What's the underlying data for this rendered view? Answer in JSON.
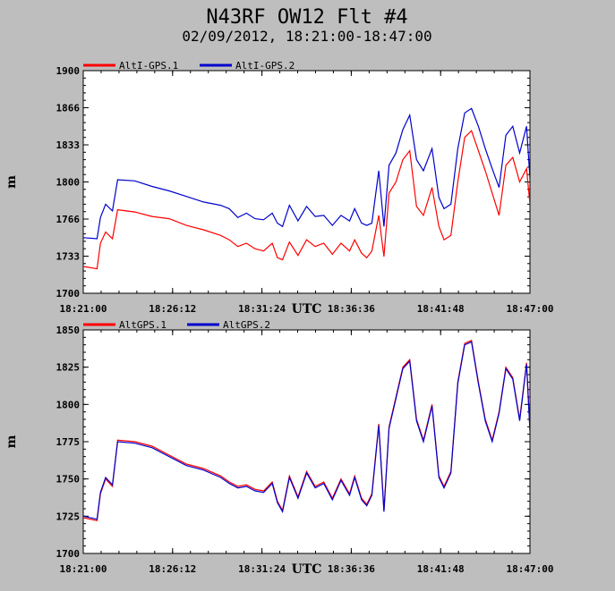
{
  "title": "N43RF OW12 Flt #4",
  "subtitle": "02/09/2012, 18:21:00-18:47:00",
  "colors": {
    "background": "#bebebe",
    "plot_bg": "#ffffff",
    "series1": "#ff0000",
    "series2": "#0000cc"
  },
  "chart_data": [
    {
      "type": "line",
      "xlabel": "UTC",
      "ylabel": "m",
      "x_ticks": [
        "18:21:00",
        "18:26:12",
        "18:31:24",
        "18:36:36",
        "18:41:48",
        "18:47:00"
      ],
      "y_ticks": [
        "1700",
        "1733",
        "1766",
        "1800",
        "1833",
        "1866",
        "1900"
      ],
      "ylim": [
        1700,
        1900
      ],
      "xlim_minutes": [
        0,
        26
      ],
      "legend": "top-left",
      "grid": false,
      "series": [
        {
          "name": "AltI-GPS.1",
          "color": "#ff0000",
          "x": [
            0,
            0.8,
            1.0,
            1.3,
            1.7,
            2.0,
            3.0,
            4.0,
            5.0,
            6.0,
            7.0,
            8.0,
            8.5,
            9.0,
            9.5,
            10.0,
            10.5,
            11.0,
            11.3,
            11.6,
            12.0,
            12.5,
            13.0,
            13.5,
            14.0,
            14.5,
            15.0,
            15.5,
            15.8,
            16.2,
            16.5,
            16.8,
            17.2,
            17.5,
            17.8,
            18.2,
            18.6,
            19.0,
            19.4,
            19.8,
            20.3,
            20.7,
            21.0,
            21.4,
            21.8,
            22.2,
            22.6,
            23.0,
            23.4,
            23.8,
            24.2,
            24.6,
            25.0,
            25.4,
            25.8,
            26.0
          ],
          "y": [
            1724,
            1722,
            1745,
            1755,
            1749,
            1775,
            1773,
            1769,
            1767,
            1761,
            1757,
            1752,
            1748,
            1742,
            1745,
            1740,
            1738,
            1745,
            1732,
            1730,
            1746,
            1734,
            1748,
            1742,
            1745,
            1735,
            1745,
            1738,
            1748,
            1736,
            1732,
            1738,
            1770,
            1733,
            1790,
            1800,
            1820,
            1828,
            1778,
            1770,
            1795,
            1760,
            1748,
            1752,
            1800,
            1840,
            1846,
            1828,
            1810,
            1790,
            1770,
            1815,
            1822,
            1800,
            1812,
            1780
          ]
        },
        {
          "name": "AltI-GPS.2",
          "color": "#0000cc",
          "x": [
            0,
            0.8,
            1.0,
            1.3,
            1.7,
            2.0,
            3.0,
            4.0,
            5.0,
            6.0,
            7.0,
            8.0,
            8.5,
            9.0,
            9.5,
            10.0,
            10.5,
            11.0,
            11.3,
            11.6,
            12.0,
            12.5,
            13.0,
            13.5,
            14.0,
            14.5,
            15.0,
            15.5,
            15.8,
            16.2,
            16.5,
            16.8,
            17.2,
            17.5,
            17.8,
            18.2,
            18.6,
            19.0,
            19.4,
            19.8,
            20.3,
            20.7,
            21.0,
            21.4,
            21.8,
            22.2,
            22.6,
            23.0,
            23.4,
            23.8,
            24.2,
            24.6,
            25.0,
            25.4,
            25.8,
            26.0
          ],
          "y": [
            1750,
            1749,
            1768,
            1780,
            1774,
            1802,
            1801,
            1796,
            1792,
            1787,
            1782,
            1779,
            1776,
            1768,
            1772,
            1767,
            1766,
            1772,
            1763,
            1760,
            1779,
            1765,
            1778,
            1769,
            1770,
            1761,
            1770,
            1765,
            1776,
            1763,
            1761,
            1763,
            1810,
            1760,
            1815,
            1826,
            1847,
            1860,
            1820,
            1810,
            1830,
            1786,
            1776,
            1780,
            1830,
            1862,
            1866,
            1850,
            1830,
            1812,
            1795,
            1842,
            1850,
            1826,
            1850,
            1803
          ]
        }
      ]
    },
    {
      "type": "line",
      "xlabel": "UTC",
      "ylabel": "m",
      "x_ticks": [
        "18:21:00",
        "18:26:12",
        "18:31:24",
        "18:36:36",
        "18:41:48",
        "18:47:00"
      ],
      "y_ticks": [
        "1700",
        "1725",
        "1750",
        "1775",
        "1800",
        "1825",
        "1850"
      ],
      "ylim": [
        1700,
        1850
      ],
      "xlim_minutes": [
        0,
        26
      ],
      "legend": "top-left",
      "grid": false,
      "series": [
        {
          "name": "AltGPS.1",
          "color": "#ff0000",
          "x": [
            0,
            0.8,
            1.0,
            1.3,
            1.7,
            2.0,
            3.0,
            4.0,
            5.0,
            6.0,
            7.0,
            8.0,
            8.5,
            9.0,
            9.5,
            10.0,
            10.5,
            11.0,
            11.3,
            11.6,
            12.0,
            12.5,
            13.0,
            13.5,
            14.0,
            14.5,
            15.0,
            15.5,
            15.8,
            16.2,
            16.5,
            16.8,
            17.2,
            17.5,
            17.8,
            18.2,
            18.6,
            19.0,
            19.4,
            19.8,
            20.3,
            20.7,
            21.0,
            21.4,
            21.8,
            22.2,
            22.6,
            23.0,
            23.4,
            23.8,
            24.2,
            24.6,
            25.0,
            25.4,
            25.8,
            26.0
          ],
          "y": [
            1724,
            1722,
            1740,
            1750,
            1745,
            1776,
            1775,
            1772,
            1766,
            1760,
            1757,
            1752,
            1748,
            1745,
            1746,
            1743,
            1742,
            1748,
            1735,
            1729,
            1752,
            1738,
            1755,
            1745,
            1748,
            1737,
            1750,
            1740,
            1752,
            1737,
            1733,
            1740,
            1787,
            1729,
            1785,
            1805,
            1825,
            1830,
            1790,
            1776,
            1800,
            1752,
            1745,
            1755,
            1815,
            1841,
            1843,
            1815,
            1790,
            1776,
            1795,
            1825,
            1818,
            1790,
            1828,
            1783
          ]
        },
        {
          "name": "AltGPS.2",
          "color": "#0000cc",
          "x": [
            0,
            0.8,
            1.0,
            1.3,
            1.7,
            2.0,
            3.0,
            4.0,
            5.0,
            6.0,
            7.0,
            8.0,
            8.5,
            9.0,
            9.5,
            10.0,
            10.5,
            11.0,
            11.3,
            11.6,
            12.0,
            12.5,
            13.0,
            13.5,
            14.0,
            14.5,
            15.0,
            15.5,
            15.8,
            16.2,
            16.5,
            16.8,
            17.2,
            17.5,
            17.8,
            18.2,
            18.6,
            19.0,
            19.4,
            19.8,
            20.3,
            20.7,
            21.0,
            21.4,
            21.8,
            22.2,
            22.6,
            23.0,
            23.4,
            23.8,
            24.2,
            24.6,
            25.0,
            25.4,
            25.8,
            26.0
          ],
          "y": [
            1725,
            1723,
            1741,
            1751,
            1746,
            1775,
            1774,
            1771,
            1765,
            1759,
            1756,
            1751,
            1747,
            1744,
            1745,
            1742,
            1741,
            1747,
            1734,
            1728,
            1751,
            1737,
            1754,
            1744,
            1747,
            1736,
            1749,
            1739,
            1751,
            1736,
            1732,
            1739,
            1786,
            1728,
            1784,
            1804,
            1824,
            1829,
            1789,
            1775,
            1799,
            1751,
            1744,
            1754,
            1814,
            1840,
            1842,
            1814,
            1789,
            1775,
            1794,
            1824,
            1817,
            1789,
            1827,
            1782
          ]
        }
      ]
    }
  ]
}
